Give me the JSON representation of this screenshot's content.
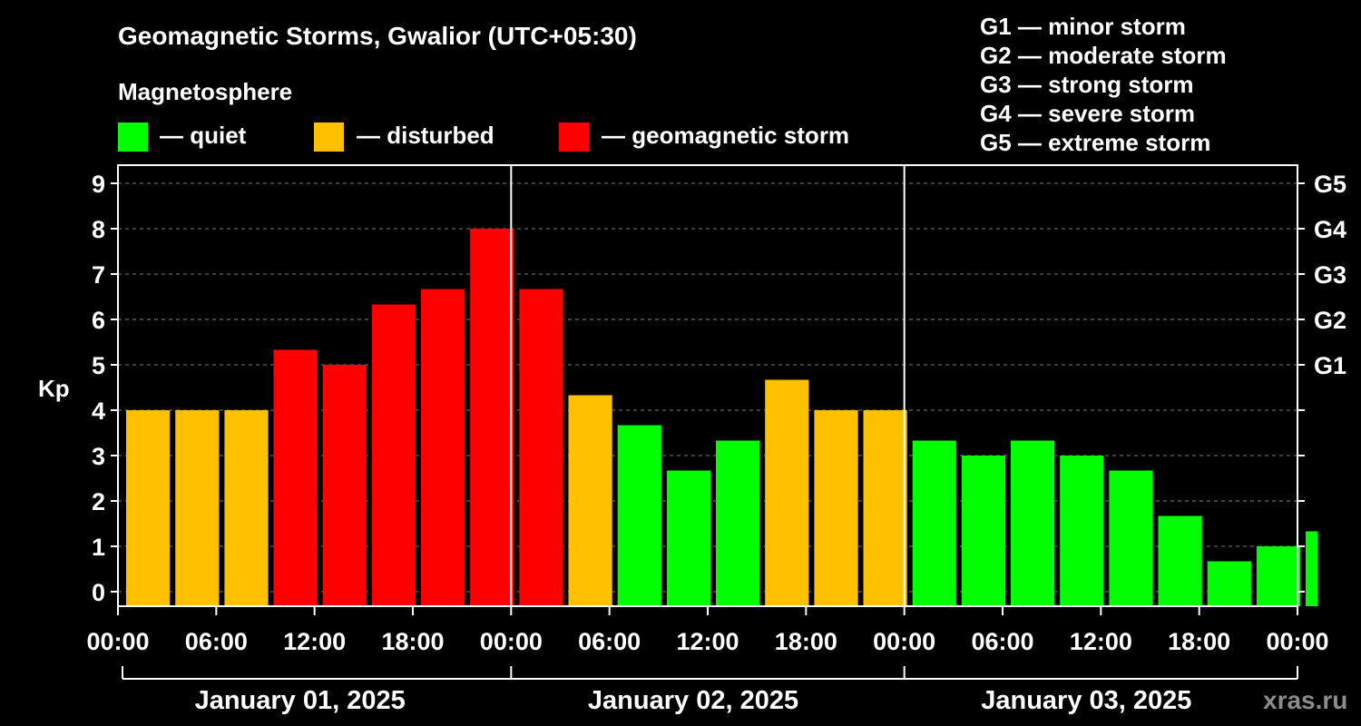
{
  "chart_data": {
    "type": "bar",
    "title": "Geomagnetic Storms, Gwalior (UTC+05:30)",
    "legend_heading": "Magnetosphere",
    "legend": [
      {
        "label": "— quiet",
        "color": "#00ff00"
      },
      {
        "label": "— disturbed",
        "color": "#ffc000"
      },
      {
        "label": "— geomagnetic storm",
        "color": "#ff0000"
      }
    ],
    "storm_scale": [
      "G1 — minor storm",
      "G2 — moderate storm",
      "G3 — strong storm",
      "G4 — severe storm",
      "G5 — extreme storm"
    ],
    "ylabel": "Kp",
    "ylim": [
      0,
      9
    ],
    "y_ticks": [
      "0",
      "1",
      "2",
      "3",
      "4",
      "5",
      "6",
      "7",
      "8",
      "9"
    ],
    "right_ticks": [
      {
        "label": "G1",
        "kp": 5
      },
      {
        "label": "G2",
        "kp": 6
      },
      {
        "label": "G3",
        "kp": 7
      },
      {
        "label": "G4",
        "kp": 8
      },
      {
        "label": "G5",
        "kp": 9
      }
    ],
    "x_hours_range": [
      0,
      72
    ],
    "x_ticks": [
      {
        "label": "00:00",
        "hour": 0
      },
      {
        "label": "06:00",
        "hour": 6
      },
      {
        "label": "12:00",
        "hour": 12
      },
      {
        "label": "18:00",
        "hour": 18
      },
      {
        "label": "00:00",
        "hour": 24
      },
      {
        "label": "06:00",
        "hour": 30
      },
      {
        "label": "12:00",
        "hour": 36
      },
      {
        "label": "18:00",
        "hour": 42
      },
      {
        "label": "00:00",
        "hour": 48
      },
      {
        "label": "06:00",
        "hour": 54
      },
      {
        "label": "12:00",
        "hour": 60
      },
      {
        "label": "18:00",
        "hour": 66
      },
      {
        "label": "00:00",
        "hour": 72
      }
    ],
    "days": [
      "January 01, 2025",
      "January 02, 2025",
      "January 03, 2025"
    ],
    "bar_hours": 3,
    "series": [
      {
        "name": "Kp",
        "values": [
          4.0,
          4.0,
          4.0,
          5.33,
          5.0,
          6.33,
          6.67,
          8.0,
          6.67,
          4.33,
          3.67,
          2.67,
          3.33,
          4.67,
          4.0,
          4.0,
          3.33,
          3.0,
          3.33,
          3.0,
          2.67,
          1.67,
          0.67,
          1.0,
          1.33
        ]
      }
    ],
    "last_bar_hours": 0.75,
    "start_offset_hours": 0.5,
    "colors": {
      "quiet": "#00ff00",
      "disturbed": "#ffc000",
      "storm": "#ff0000"
    },
    "grid": true
  },
  "watermark": "xras.ru"
}
